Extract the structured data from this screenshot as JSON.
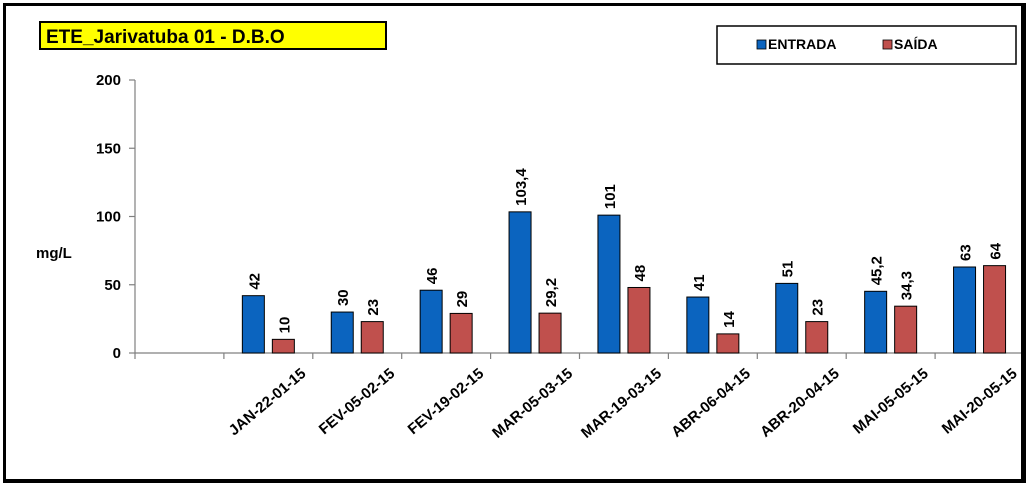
{
  "chart_data": {
    "type": "bar",
    "title": "ETE_Jarivatuba 01 - D.B.O",
    "ylabel": "mg/L",
    "ylim": [
      0,
      200
    ],
    "yticks": [
      0,
      50,
      100,
      150,
      200
    ],
    "categories": [
      "",
      "JAN-22-01-15",
      "FEV-05-02-15",
      "FEV-19-02-15",
      "MAR-05-03-15",
      "MAR-19-03-15",
      "ABR-06-04-15",
      "ABR-20-04-15",
      "MAI-05-05-15",
      "MAI-20-05-15"
    ],
    "series": [
      {
        "name": "ENTRADA",
        "color": "#0b64bf",
        "values": [
          null,
          42,
          30,
          46,
          103.4,
          101,
          41,
          51,
          45.2,
          63
        ],
        "labels": [
          "",
          "42",
          "30",
          "46",
          "103,4",
          "101",
          "41",
          "51",
          "45,2",
          "63"
        ]
      },
      {
        "name": "SAÍDA",
        "color": "#c0504d",
        "values": [
          null,
          10,
          23,
          29,
          29.2,
          48,
          14,
          23,
          34.3,
          64
        ],
        "labels": [
          "",
          "10",
          "23",
          "29",
          "29,2",
          "48",
          "14",
          "23",
          "34,3",
          "64"
        ]
      }
    ],
    "grid": false,
    "legend_position": "top-right",
    "title_background": "#ffff00"
  }
}
